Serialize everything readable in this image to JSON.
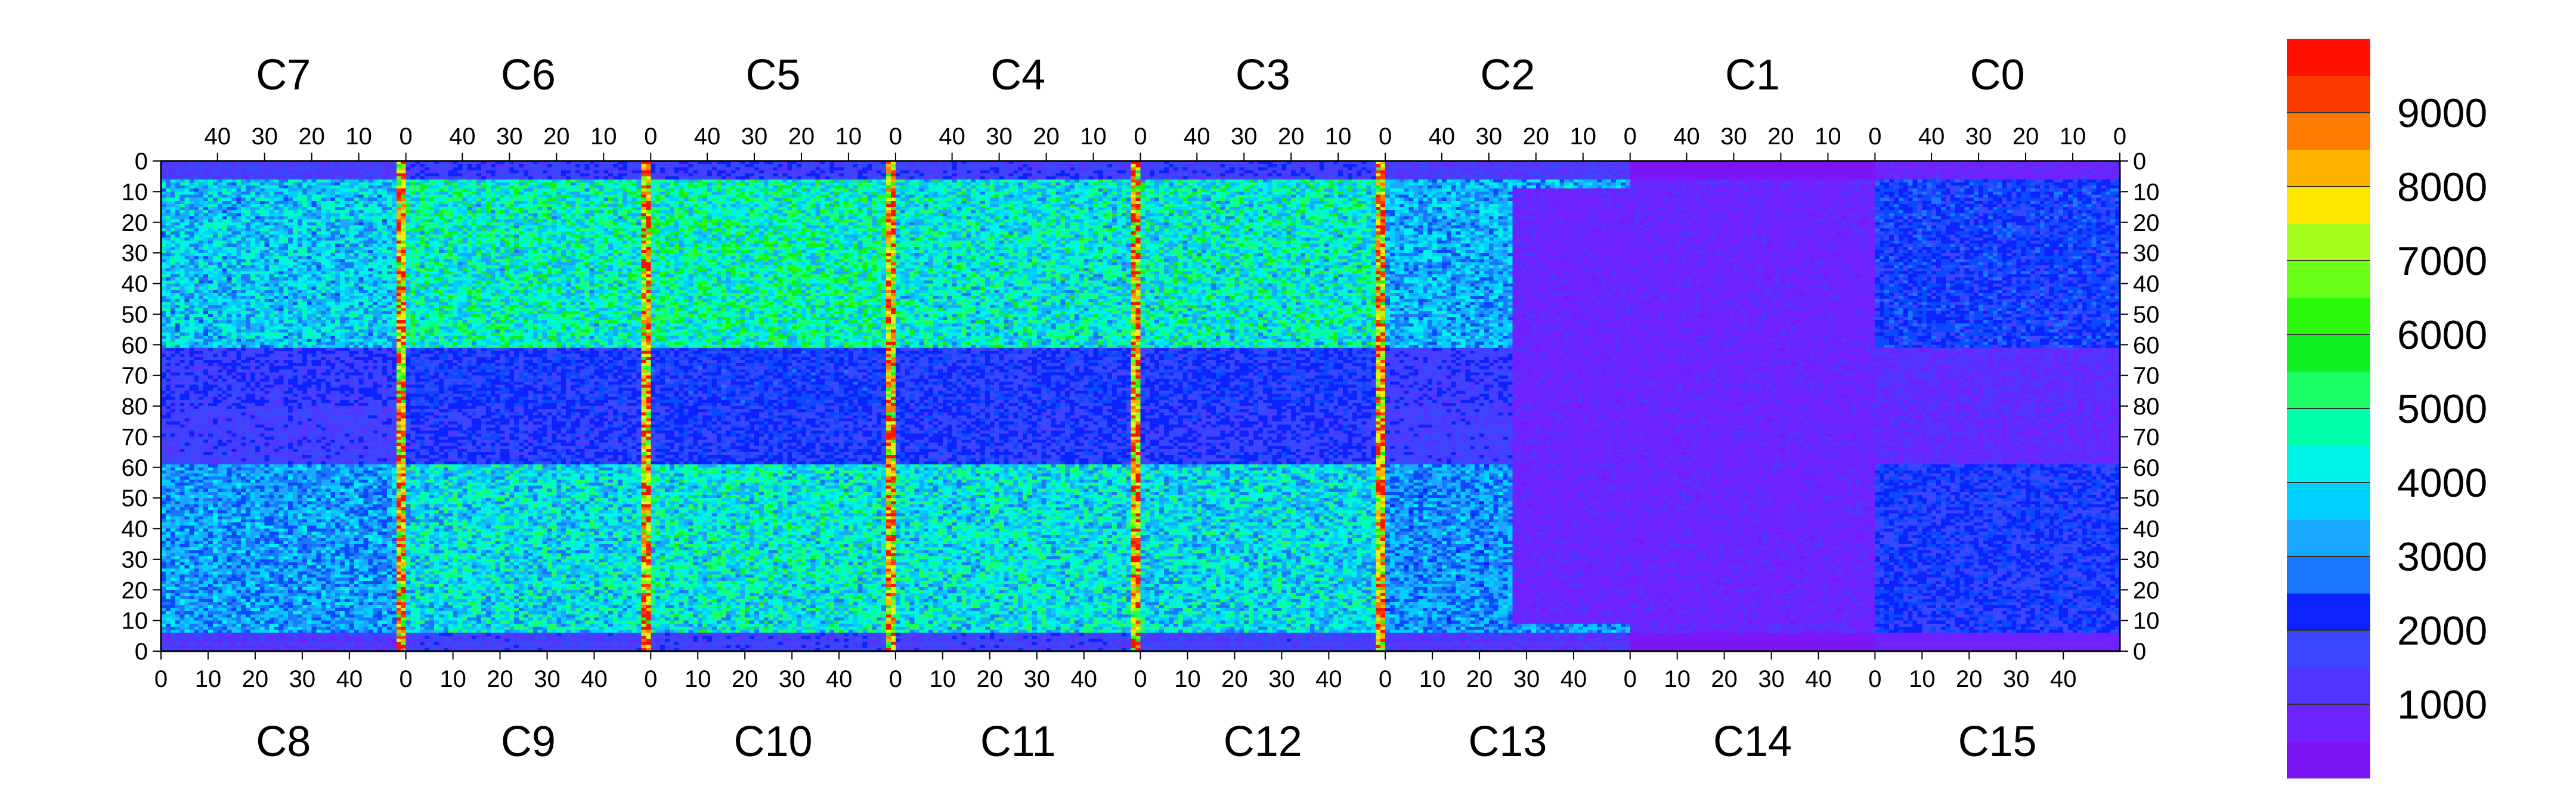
{
  "chart_data": {
    "type": "heatmap",
    "title": "",
    "xlabel": "",
    "ylabel": "",
    "top_chip_labels": [
      "C7",
      "C6",
      "C5",
      "C4",
      "C3",
      "C2",
      "C1",
      "C0"
    ],
    "bottom_chip_labels": [
      "C8",
      "C9",
      "C10",
      "C11",
      "C12",
      "C13",
      "C14",
      "C15"
    ],
    "top_x_tick_labels": [
      "40",
      "30",
      "20",
      "10",
      "0"
    ],
    "bottom_x_tick_labels": [
      "0",
      "10",
      "20",
      "30",
      "40"
    ],
    "y_tick_labels": [
      "0",
      "10",
      "20",
      "30",
      "40",
      "50",
      "60",
      "70",
      "80",
      "70",
      "60",
      "50",
      "40",
      "30",
      "20",
      "10",
      "0"
    ],
    "columns_per_chip": 52,
    "rows_per_half": 80,
    "z_range": [
      0,
      10000
    ],
    "colorbar_tick_labels": [
      "1000",
      "2000",
      "3000",
      "4000",
      "5000",
      "6000",
      "7000",
      "8000",
      "9000"
    ],
    "colorbar_tick_values": [
      1000,
      2000,
      3000,
      4000,
      5000,
      6000,
      7000,
      8000,
      9000
    ],
    "colorbar_levels": 20,
    "grid": false,
    "legend": "right colorbar",
    "chip_upper_mean_occupancy": [
      3800,
      4500,
      4700,
      4300,
      4400,
      3500,
      800,
      2200
    ],
    "chip_lower_mean_occupancy": [
      3300,
      4100,
      4300,
      4200,
      4000,
      3200,
      900,
      2000
    ],
    "hot_column_positions": [
      "C7/C8 edge 0",
      "C6/C9 edge 0",
      "C5/C10 edge 0",
      "C4/C11 edge 0",
      "C3/C12 edge 0"
    ],
    "hot_column_peak": 9500,
    "low_occupancy_region": "C13 right half to C14",
    "low_occupancy_value": 600,
    "palette": [
      "#7a16f4",
      "#6e22ff",
      "#5236ff",
      "#3b46ff",
      "#0c22ff",
      "#0a4aff",
      "#1a78ff",
      "#1aa8ff",
      "#00d0ff",
      "#00f2e8",
      "#00ffaa",
      "#1cff64",
      "#10f020",
      "#2cf80c",
      "#6cff18",
      "#a4ff20",
      "#d8ff14",
      "#ffe800",
      "#ffb000",
      "#ff7a00",
      "#ff3c00",
      "#ff1000"
    ]
  }
}
